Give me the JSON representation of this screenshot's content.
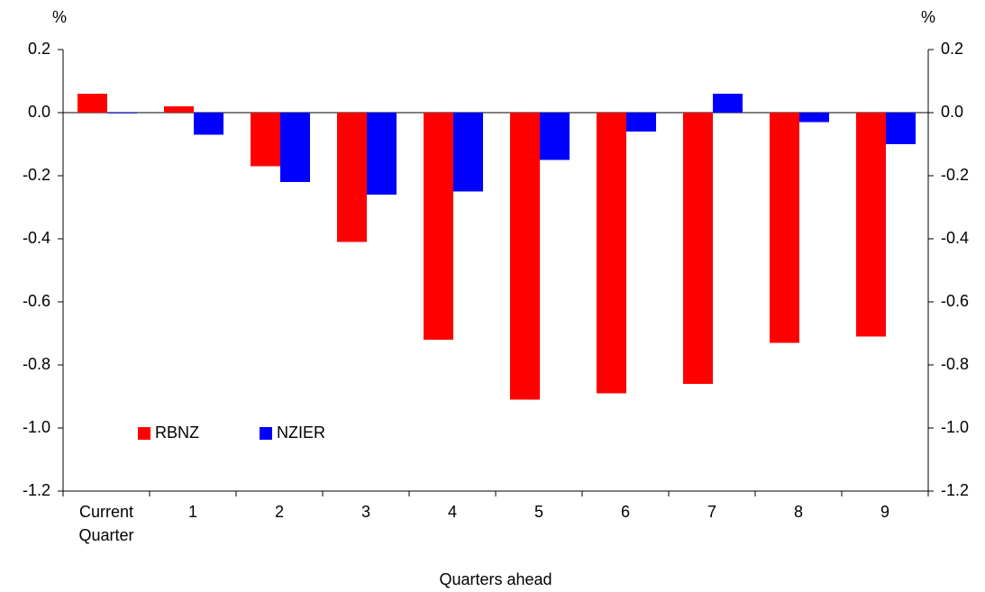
{
  "chart_data": {
    "type": "bar",
    "y_label": "%",
    "y2_label": "%",
    "x_label": "Quarters ahead",
    "categories": [
      "Current Quarter",
      "1",
      "2",
      "3",
      "4",
      "5",
      "6",
      "7",
      "8",
      "9"
    ],
    "series": [
      {
        "name": "RBNZ",
        "color": "#ff0000",
        "values": [
          0.06,
          0.02,
          -0.17,
          -0.41,
          -0.72,
          -0.91,
          -0.89,
          -0.86,
          -0.73,
          -0.71
        ]
      },
      {
        "name": "NZIER",
        "color": "#0000ff",
        "values": [
          0.0,
          -0.07,
          -0.22,
          -0.26,
          -0.25,
          -0.15,
          -0.06,
          0.06,
          -0.03,
          -0.1
        ]
      }
    ],
    "ylim": [
      -1.2,
      0.2
    ],
    "yticks": [
      0.2,
      {
        "value": 0,
        "label": "0.0"
      },
      -0.2,
      -0.4,
      -0.6,
      -0.8,
      {
        "value": -1,
        "label": "-1.0"
      },
      -1.2
    ],
    "y2lim": [
      -1.2,
      0.2
    ],
    "y2ticks": [
      0.2,
      {
        "value": 0,
        "label": "0.0"
      },
      -0.2,
      -0.4,
      -0.6,
      -0.8,
      {
        "value": -1,
        "label": "-1.0"
      },
      -1.2
    ],
    "legend": "lower left",
    "grid": false
  }
}
